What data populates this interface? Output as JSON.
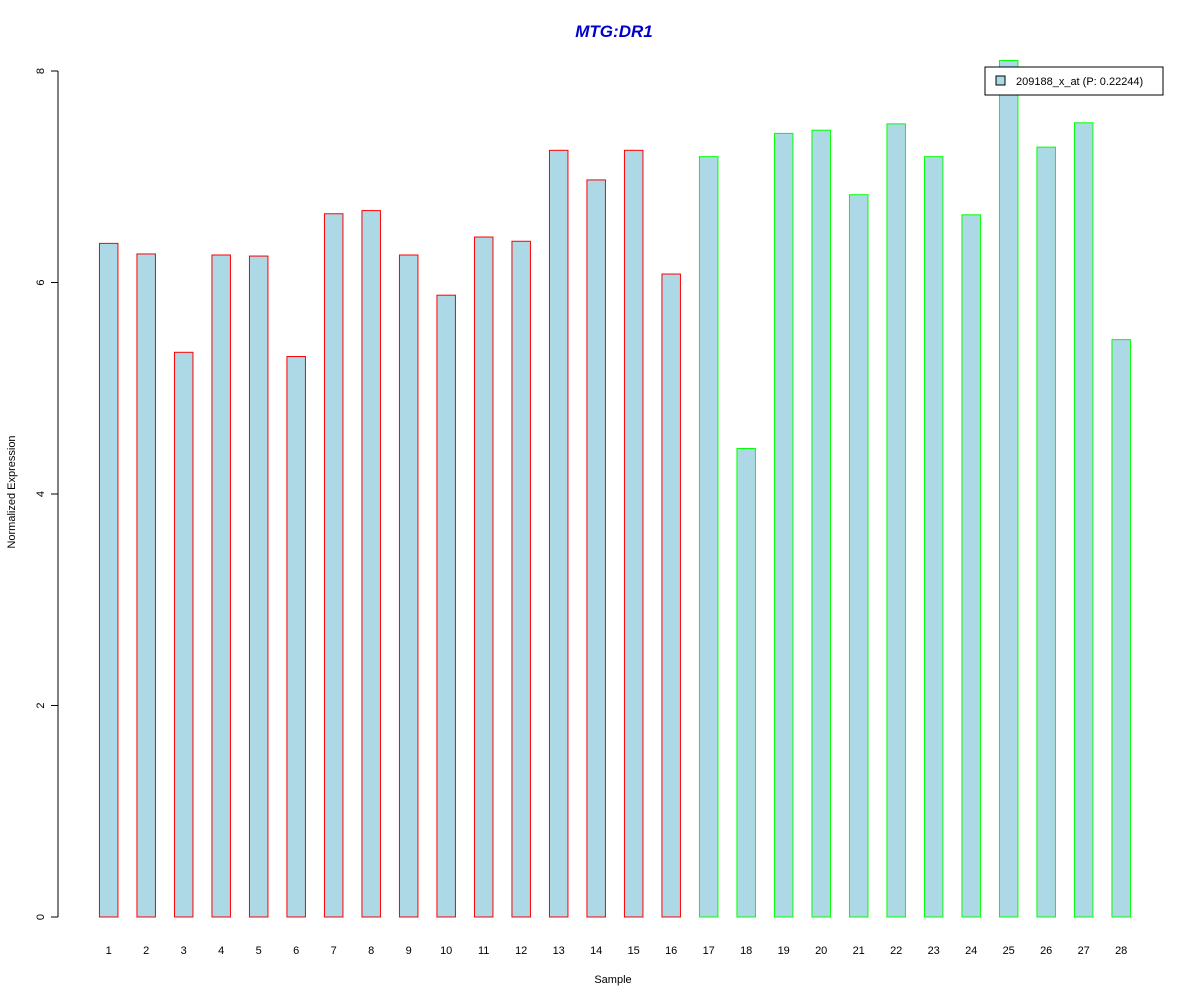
{
  "chart_data": {
    "type": "bar",
    "title": "MTG:DR1",
    "xlabel": "Sample",
    "ylabel": "Normalized Expression",
    "ylim": [
      0,
      8
    ],
    "yticks": [
      0,
      2,
      4,
      6,
      8
    ],
    "categories": [
      "1",
      "2",
      "3",
      "4",
      "5",
      "6",
      "7",
      "8",
      "9",
      "10",
      "11",
      "12",
      "13",
      "14",
      "15",
      "16",
      "17",
      "18",
      "19",
      "20",
      "21",
      "22",
      "23",
      "24",
      "25",
      "26",
      "27",
      "28"
    ],
    "values": [
      6.37,
      6.27,
      5.34,
      6.26,
      6.25,
      5.3,
      6.65,
      6.68,
      6.26,
      5.88,
      6.43,
      6.39,
      7.25,
      6.97,
      7.25,
      6.08,
      7.19,
      4.43,
      7.41,
      7.44,
      6.83,
      7.5,
      7.19,
      6.64,
      8.1,
      7.28,
      7.51,
      5.46
    ],
    "fill_color": "#add8e6",
    "group_colors": [
      "#ff0000",
      "#ff0000",
      "#ff0000",
      "#ff0000",
      "#ff0000",
      "#ff0000",
      "#ff0000",
      "#ff0000",
      "#ff0000",
      "#ff0000",
      "#ff0000",
      "#ff0000",
      "#ff0000",
      "#ff0000",
      "#ff0000",
      "#ff0000",
      "#00ff00",
      "#00ff00",
      "#00ff00",
      "#00ff00",
      "#00ff00",
      "#00ff00",
      "#00ff00",
      "#00ff00",
      "#00ff00",
      "#00ff00",
      "#00ff00",
      "#00ff00"
    ],
    "title_color": "#0000cc",
    "legend": {
      "label": "209188_x_at (P: 0.22244)",
      "placement": "top-right"
    },
    "grid": false
  }
}
